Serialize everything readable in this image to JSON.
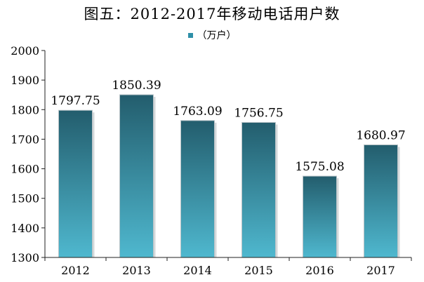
{
  "chart_data": {
    "type": "bar",
    "title": "图五：2012-2017年移动电话用户数",
    "legend": {
      "label": "（万户）",
      "placement": "top-center"
    },
    "categories": [
      "2012",
      "2013",
      "2014",
      "2015",
      "2016",
      "2017"
    ],
    "series": [
      {
        "name": "（万户）",
        "values": [
          1797.75,
          1850.39,
          1763.09,
          1756.75,
          1575.08,
          1680.97
        ]
      }
    ],
    "data_labels": [
      "1797.75",
      "1850.39",
      "1763.09",
      "1756.75",
      "1575.08",
      "1680.97"
    ],
    "ylim": [
      1300,
      2000
    ],
    "yticks": [
      1300,
      1400,
      1500,
      1600,
      1700,
      1800,
      1900,
      2000
    ],
    "xlabel": "",
    "ylabel": "",
    "grid": false,
    "colors": {
      "bar_top": "#235d6d",
      "bar_bottom": "#4fb8cf",
      "bar_edge": "#b9c3c7",
      "axis": "#222222",
      "legend_swatch": "#2e8fa8"
    }
  }
}
